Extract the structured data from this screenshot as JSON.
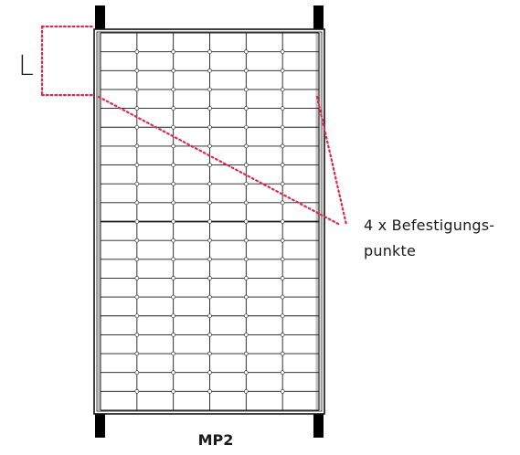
{
  "diagram": {
    "dimension_label": "L",
    "mounting_note": {
      "line1": "4 x Befestigungs-",
      "line2": "punkte"
    },
    "panel_label": "MP2",
    "panel": {
      "cell_columns": 6,
      "cell_rows": 20
    },
    "colors": {
      "accent": "#e0284f",
      "frame": "#111111",
      "grid": "#1a1a1a",
      "side_bar": "#bfbfbf",
      "rail": "#000000"
    }
  }
}
